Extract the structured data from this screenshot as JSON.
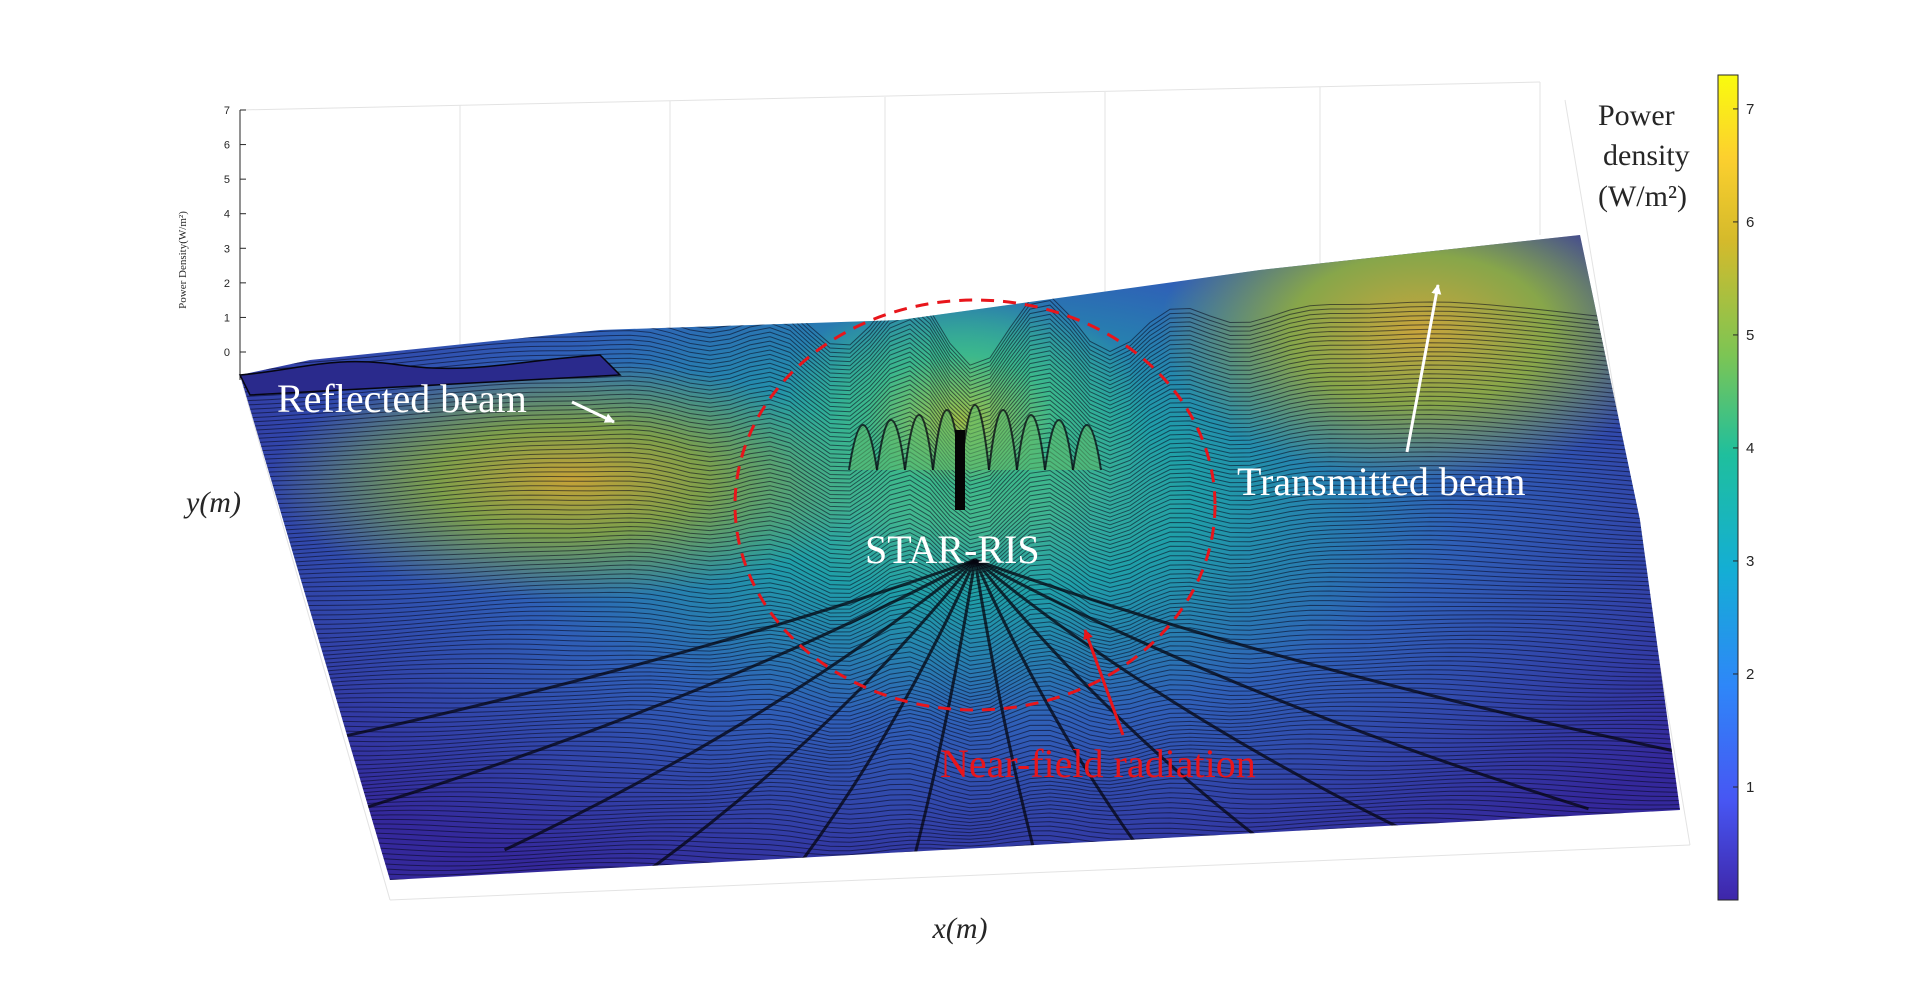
{
  "chart_data": {
    "type": "surface",
    "title": "",
    "xlabel": "x(m)",
    "ylabel": "y(m)",
    "zlabel": "Power Density(W/m²)",
    "zlim": [
      0,
      7
    ],
    "z_ticks": [
      "0",
      "1",
      "2",
      "3",
      "4",
      "5",
      "6",
      "7"
    ],
    "grid": true,
    "colormap": "parula",
    "colormap_stops": [
      "#3e26a8",
      "#4756f3",
      "#2e87f8",
      "#14aed4",
      "#1fbf9d",
      "#7cc554",
      "#d5ba2b",
      "#fcd02e",
      "#f9fb0e"
    ],
    "colorbar": {
      "title_line1": "Power",
      "title_line2": "density",
      "title_line3": "(W/m²)",
      "range": [
        0,
        7.3
      ],
      "ticks": [
        "1",
        "2",
        "3",
        "4",
        "5",
        "6",
        "7"
      ]
    },
    "annotations": [
      {
        "text": "Reflected beam",
        "color": "#ffffff"
      },
      {
        "text": "Transmitted beam",
        "color": "#ffffff"
      },
      {
        "text": "STAR-RIS",
        "color": "#ffffff"
      },
      {
        "text": "Near-field radiation",
        "color": "#e8151b"
      }
    ]
  }
}
